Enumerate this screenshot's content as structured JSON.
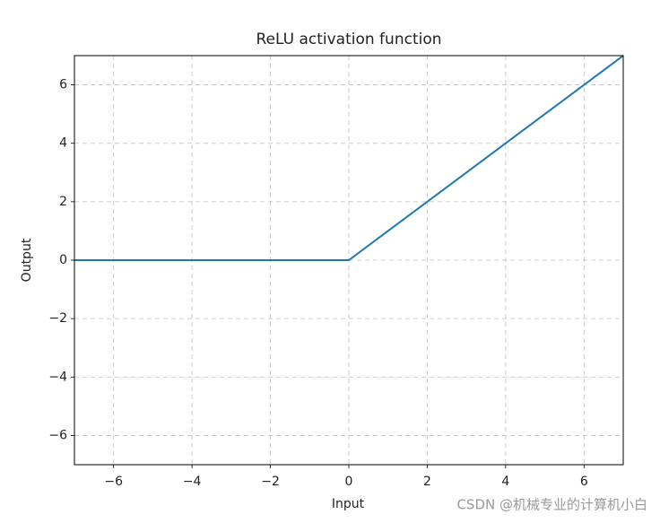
{
  "chart_data": {
    "type": "line",
    "title": "ReLU activation function",
    "x_label": "Input",
    "y_label": "Output",
    "x": [
      -7,
      0,
      7
    ],
    "values": [
      0,
      0,
      7
    ],
    "color": "#1f77b4",
    "xlim": [
      -7,
      7
    ],
    "ylim": [
      -7,
      7
    ],
    "xticks": [
      {
        "value": -6,
        "label": "−6"
      },
      {
        "value": -4,
        "label": "−4"
      },
      {
        "value": -2,
        "label": "−2"
      },
      0,
      2,
      4,
      6
    ],
    "yticks": [
      {
        "value": -6,
        "label": "−6"
      },
      {
        "value": -4,
        "label": "−4"
      },
      {
        "value": -2,
        "label": "−2"
      },
      0,
      2,
      4,
      6
    ],
    "grid": true,
    "watermark": "CSDN @机械专业的计算机小白"
  }
}
